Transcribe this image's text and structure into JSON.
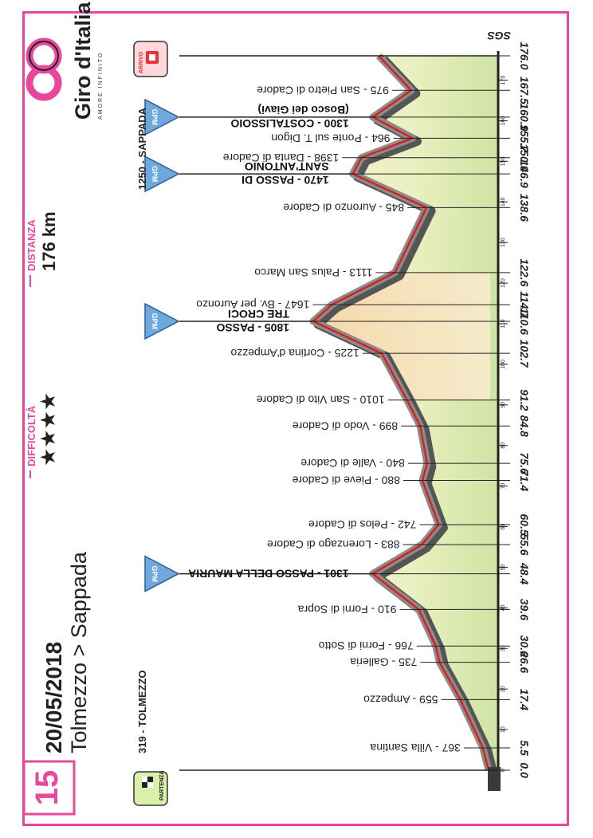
{
  "header": {
    "stage_number": "15",
    "date": "20/05/2018",
    "route": "Tolmezzo > Sappada",
    "difficulty_label": "DIFFICOLTÀ",
    "difficulty_stars": "★★★★",
    "distance_label": "DISTANZA",
    "distance_value": "176 km",
    "brand_main": "Giro d'Italia",
    "brand_sub": "AMORE INFINITO"
  },
  "start": {
    "label": "319 - TOLMEZZO",
    "badge": "PARTENZA"
  },
  "finish": {
    "label": "1250 - SAPPADA",
    "badge": "ARRIVO"
  },
  "watermark": "SGS",
  "gpm_badge": "GPM",
  "climbs": [
    {
      "line1": "1301 - PASSO DELLA MAURIA",
      "line2": ""
    },
    {
      "line1": "1805 - PASSO",
      "line2": "TRE CROCI"
    },
    {
      "line1": "1470 - PASSO DI",
      "line2": "SANT'ANTONIO"
    },
    {
      "line1": "1300 - COSTALISSOIO",
      "line2": "(Bosco dei Giavi)"
    }
  ],
  "places": [
    "367 - Villa Santina",
    "559 - Ampezzo",
    "735 - Galleria",
    "766 - Forni di Sotto",
    "910 - Forni di Sopra",
    "883 - Lorenzago di Cadore",
    "742 - Pelos di Cadore",
    "880 - Pieve di Cadore",
    "840 - Valle di Cadore",
    "899 - Vodo di Cadore",
    "1010 - San Vito di Cadore",
    "1225 - Cortina d'Ampezzo",
    "1647 - Bv. per Auronzo",
    "1113 - Palus San Marco",
    "845 - Auronzo di Cadore",
    "1398 - Danta di Cadore",
    "964 - Ponte sul T. Digon",
    "975 - San Pietro di Cadore"
  ],
  "km_markers": [
    "0.0",
    "5.5",
    "17.4",
    "26.6",
    "30.6",
    "39.6",
    "48.4",
    "55.6",
    "60.5",
    "71.4",
    "75.6",
    "84.8",
    "91.2",
    "102.7",
    "110.6",
    "114.7",
    "122.6",
    "138.6",
    "146.9",
    "150.9",
    "155.7",
    "160.9",
    "167.5",
    "176.0"
  ],
  "scale_ticks": [
    "0",
    "10",
    "20",
    "30",
    "40",
    "50",
    "60",
    "70",
    "80",
    "90",
    "100",
    "110",
    "120",
    "130",
    "140",
    "150",
    "160",
    "170"
  ],
  "chart_data": {
    "type": "area",
    "title": "",
    "xlabel": "",
    "ylabel": "",
    "xlim": [
      0,
      176
    ],
    "ylim": [
      250,
      1900
    ],
    "x": [
      0,
      5.5,
      17.4,
      26.6,
      30.6,
      39.6,
      48.4,
      55.6,
      60.5,
      71.4,
      75.6,
      84.8,
      91.2,
      102.7,
      110.6,
      114.7,
      122.6,
      138.6,
      146.9,
      150.9,
      155.7,
      160.9,
      167.5,
      176.0
    ],
    "series": [
      {
        "values": [
          319,
          367,
          559,
          735,
          766,
          910,
          1301,
          883,
          742,
          880,
          840,
          899,
          1010,
          1225,
          1805,
          1647,
          1113,
          845,
          1470,
          1398,
          964,
          1300,
          975,
          1250
        ]
      }
    ]
  }
}
